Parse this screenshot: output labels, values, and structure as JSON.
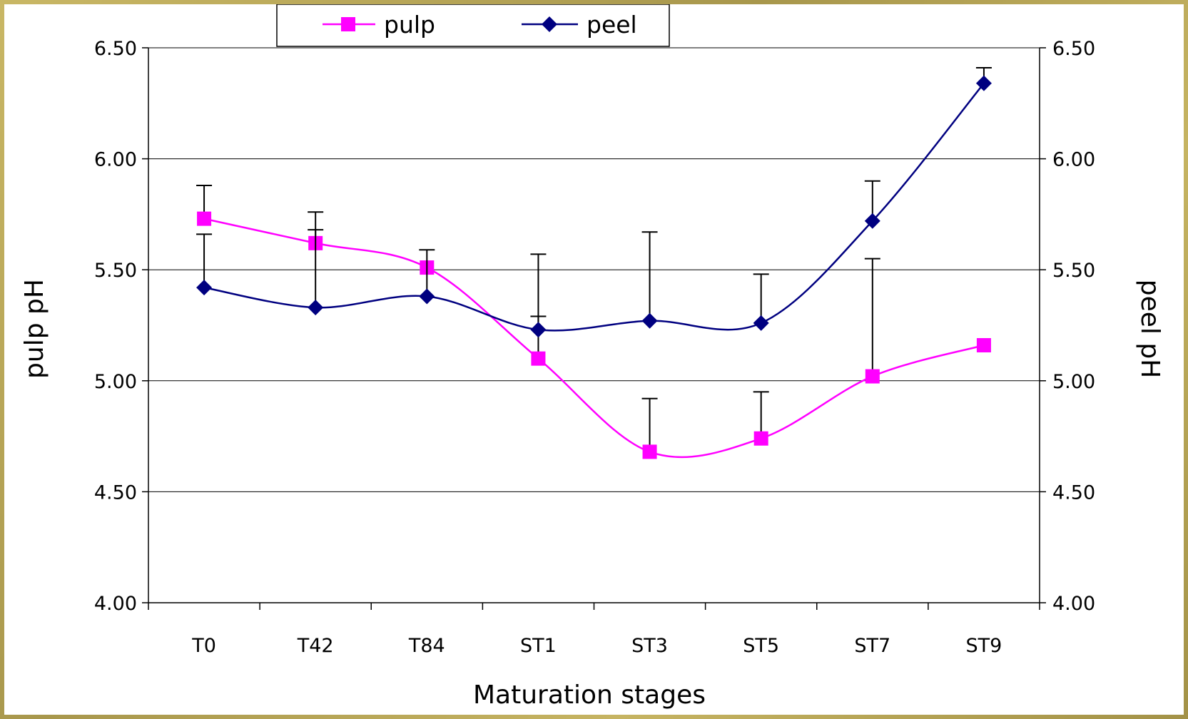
{
  "chart_data": {
    "type": "line",
    "categories": [
      "T0",
      "T42",
      "T84",
      "ST1",
      "ST3",
      "ST5",
      "ST7",
      "ST9"
    ],
    "series": [
      {
        "name": "pulp",
        "axis": "left",
        "color": "#ff00ff",
        "marker": "square",
        "values": [
          5.73,
          5.62,
          5.51,
          5.1,
          4.68,
          4.74,
          5.02,
          5.16
        ],
        "error_upper": [
          5.88,
          5.76,
          null,
          5.29,
          4.92,
          4.95,
          5.55,
          null
        ]
      },
      {
        "name": "peel",
        "axis": "right",
        "color": "#000080",
        "marker": "diamond",
        "values": [
          5.42,
          5.33,
          5.38,
          5.23,
          5.27,
          5.26,
          5.72,
          6.34
        ],
        "error_upper": [
          5.66,
          5.68,
          5.59,
          5.57,
          5.67,
          5.48,
          5.9,
          6.41
        ]
      }
    ],
    "xlabel": "Maturation stages",
    "ylabel": "pulp pH",
    "y2label": "peel pH",
    "ylim": [
      4.0,
      6.5
    ],
    "y2lim": [
      4.0,
      6.5
    ],
    "yticks": [
      "4.00",
      "4.50",
      "5.00",
      "5.50",
      "6.00",
      "6.50"
    ],
    "y2ticks": [
      "4.00",
      "4.50",
      "5.00",
      "5.50",
      "6.00",
      "6.50"
    ],
    "grid": true,
    "legend_position": "top"
  }
}
